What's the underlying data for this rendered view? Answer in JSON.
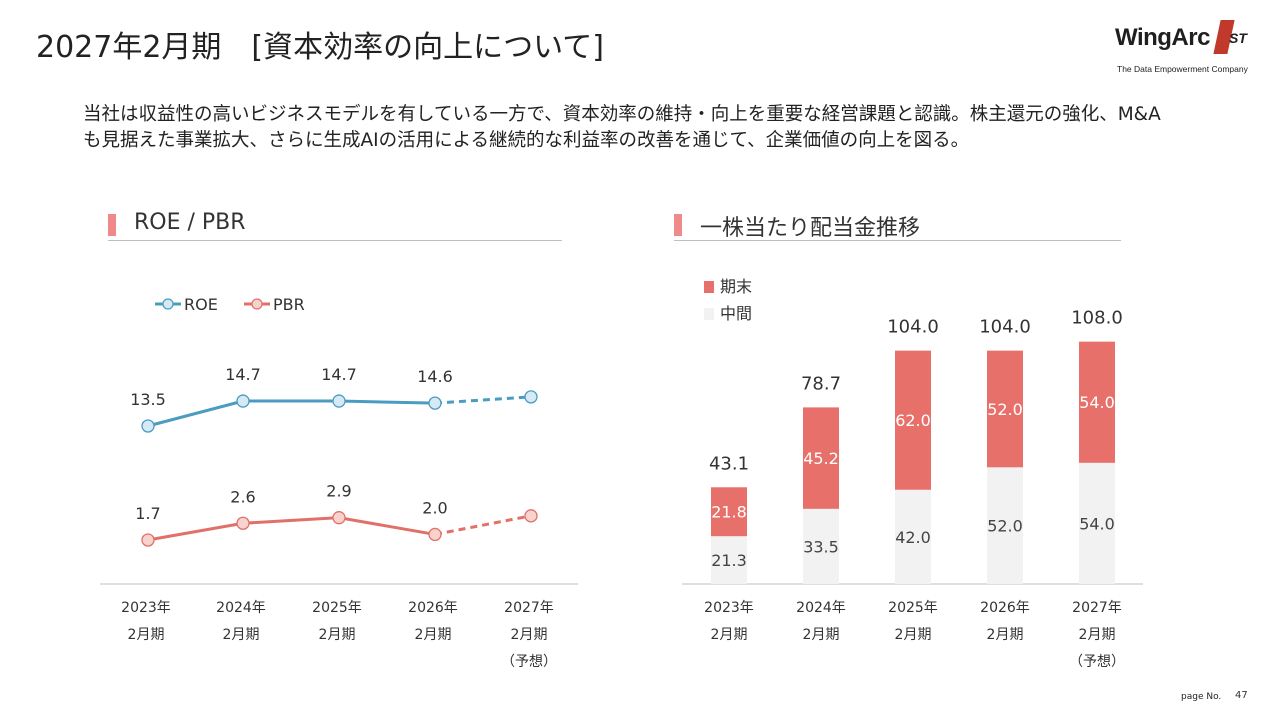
{
  "header": {
    "title": "2027年2月期　[資本効率の向上について]",
    "logo_text": "WingArc",
    "logo_sup": "ST",
    "logo_mark": "1",
    "logo_tagline": "The Data Empowerment Company"
  },
  "intro": "当社は収益性の高いビジネスモデルを有している一方で、資本効率の維持・向上を重要な経営課題と認識。株主還元の強化、M&Aも見据えた事業拡大、さらに生成AIの活用による継続的な利益率の改善を通じて、企業価値の向上を図る。",
  "left_section": {
    "title": "ROE / PBR"
  },
  "right_section": {
    "title": "一株当たり配当金推移"
  },
  "chart_data": [
    {
      "type": "line",
      "title": "ROE / PBR",
      "categories": [
        [
          "2023年",
          "2月期"
        ],
        [
          "2024年",
          "2月期"
        ],
        [
          "2025年",
          "2月期"
        ],
        [
          "2026年",
          "2月期"
        ],
        [
          "2027年",
          "2月期",
          "（予想）"
        ]
      ],
      "series": [
        {
          "name": "ROE",
          "values": [
            13.5,
            14.7,
            14.7,
            14.6,
            14.9
          ],
          "labels": [
            "13.5",
            "14.7",
            "14.7",
            "14.6",
            ""
          ],
          "color": "#4a9cc0",
          "fill": "#d6eaf5",
          "forecast_from_index": 3
        },
        {
          "name": "PBR",
          "values": [
            1.7,
            2.6,
            2.9,
            2.0,
            3.0
          ],
          "labels": [
            "1.7",
            "2.6",
            "2.9",
            "2.0",
            ""
          ],
          "color": "#e07068",
          "fill": "#f8d3cd",
          "forecast_from_index": 3
        }
      ],
      "legend": "top-left"
    },
    {
      "type": "bar",
      "stacked": true,
      "title": "一株当たり配当金推移",
      "categories": [
        [
          "2023年",
          "2月期"
        ],
        [
          "2024年",
          "2月期"
        ],
        [
          "2025年",
          "2月期"
        ],
        [
          "2026年",
          "2月期"
        ],
        [
          "2027年",
          "2月期",
          "（予想）"
        ]
      ],
      "series": [
        {
          "name": "中間",
          "values": [
            21.3,
            33.5,
            42.0,
            52.0,
            54.0
          ],
          "labels": [
            "21.3",
            "33.5",
            "42.0",
            "52.0",
            "54.0"
          ],
          "color": "#f2f2f2"
        },
        {
          "name": "期末",
          "values": [
            21.8,
            45.2,
            62.0,
            52.0,
            54.0
          ],
          "labels": [
            "21.8",
            "45.2",
            "62.0",
            "52.0",
            "54.0"
          ],
          "color": "#e8706a"
        }
      ],
      "totals": [
        "43.1",
        "78.7",
        "104.0",
        "104.0",
        "108.0"
      ],
      "legend": "top-left"
    }
  ],
  "footer": {
    "page_label": "page No.",
    "page_number": "47"
  }
}
